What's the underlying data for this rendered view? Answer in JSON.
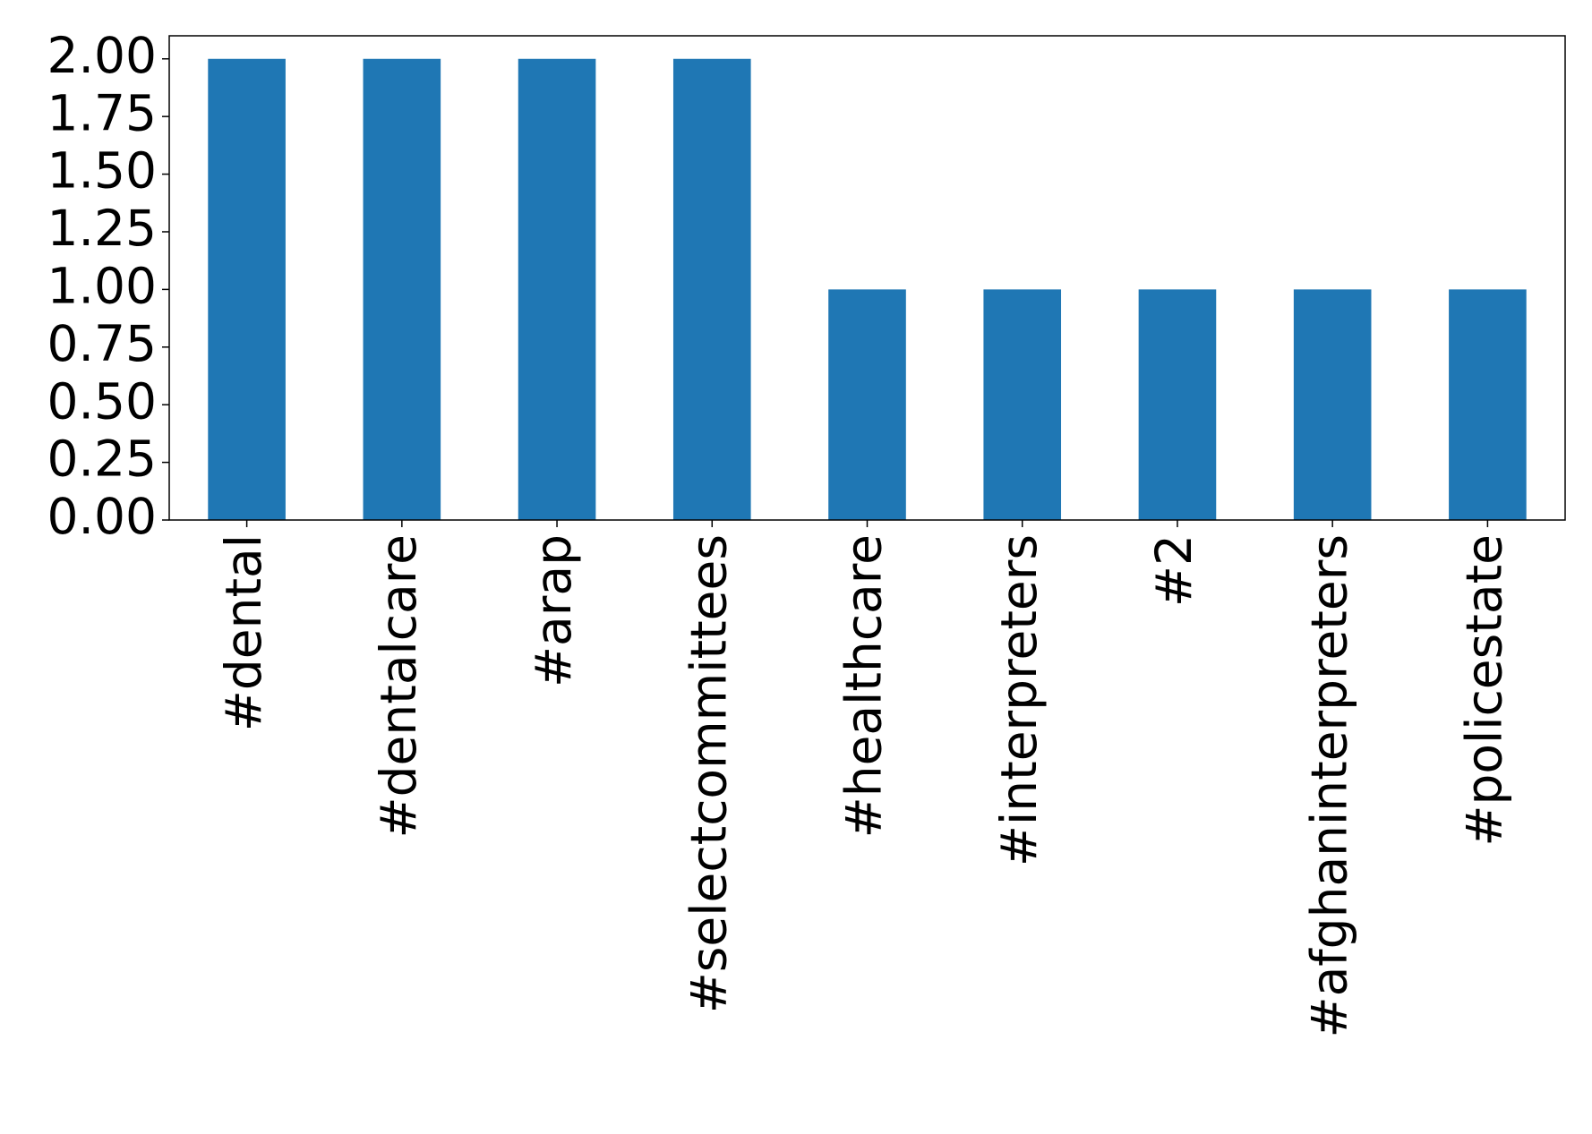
{
  "chart_data": {
    "type": "bar",
    "categories": [
      "#dental",
      "#dentalcare",
      "#arap",
      "#selectcommittees",
      "#healthcare",
      "#interpreters",
      "#2",
      "#afghaninterpreters",
      "#policestate"
    ],
    "values": [
      2,
      2,
      2,
      2,
      1,
      1,
      1,
      1,
      1
    ],
    "color": "#1f77b4",
    "ylim": [
      0,
      2.1
    ],
    "yticks": [
      {
        "value": 0,
        "label": "0.00"
      },
      {
        "value": 0.25,
        "label": "0.25"
      },
      {
        "value": 0.5,
        "label": "0.50"
      },
      {
        "value": 0.75,
        "label": "0.75"
      },
      {
        "value": 1,
        "label": "1.00"
      },
      {
        "value": 1.25,
        "label": "1.25"
      },
      {
        "value": 1.5,
        "label": "1.50"
      },
      {
        "value": 1.75,
        "label": "1.75"
      },
      {
        "value": 2,
        "label": "2.00"
      }
    ],
    "grid": false
  }
}
